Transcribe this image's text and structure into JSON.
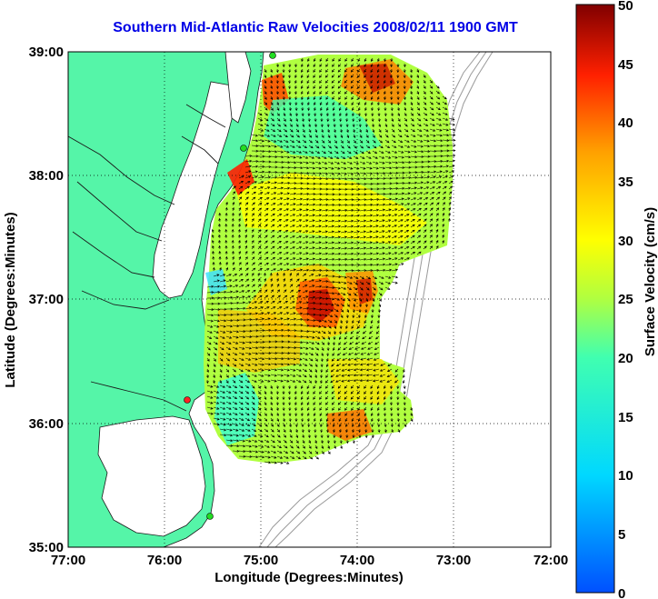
{
  "title": "Southern Mid-Atlantic Raw Velocities 2008/02/11 1900 GMT",
  "axes": {
    "xlabel": "Longitude (Degrees:Minutes)",
    "ylabel": "Latitude (Degrees:Minutes)",
    "xticks": [
      "77:00",
      "76:00",
      "75:00",
      "74:00",
      "73:00",
      "72:00"
    ],
    "yticks": [
      "39:00",
      "38:00",
      "37:00",
      "36:00",
      "35:00"
    ]
  },
  "colorbar": {
    "label": "Surface Velocity (cm/s)",
    "ticks": [
      "50",
      "45",
      "40",
      "35",
      "30",
      "25",
      "20",
      "15",
      "10",
      "5",
      "0"
    ],
    "min": 0,
    "max": 50
  },
  "colors": {
    "land": "#55f5a8",
    "water": "#ffffff",
    "title": "#0000e6",
    "station_green": "#22dd22",
    "station_red": "#ff2222"
  }
}
